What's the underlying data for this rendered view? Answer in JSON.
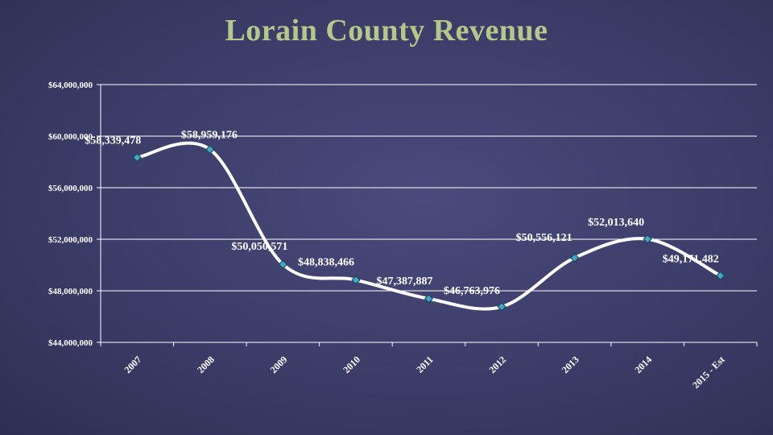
{
  "chart_data": {
    "type": "line",
    "title": "Lorain County Revenue",
    "categories": [
      "2007",
      "2008",
      "2009",
      "2010",
      "2011",
      "2012",
      "2013",
      "2014",
      "2015 - Est"
    ],
    "values": [
      58339478,
      58959176,
      50050571,
      48838466,
      47387887,
      46763976,
      50556121,
      52013640,
      49171482
    ],
    "value_labels": [
      "$58,339,478",
      "$58,959,176",
      "$50,050,571",
      "$48,838,466",
      "$47,387,887",
      "$46,763,976",
      "$50,556,121",
      "$52,013,640",
      "$49,171,482"
    ],
    "y_ticks": [
      44000000,
      48000000,
      52000000,
      56000000,
      60000000,
      64000000
    ],
    "y_tick_labels": [
      "$44,000,000",
      "$48,000,000",
      "$52,000,000",
      "$56,000,000",
      "$60,000,000",
      "$64,000,000"
    ],
    "ylim": [
      44000000,
      64000000
    ],
    "xlabel": "",
    "ylabel": "",
    "grid": true,
    "smooth": true,
    "line_color": "#ffffff",
    "marker_color": "#3fa7c8",
    "title_color": "#b4c88a",
    "text_color": "#ffffff"
  }
}
